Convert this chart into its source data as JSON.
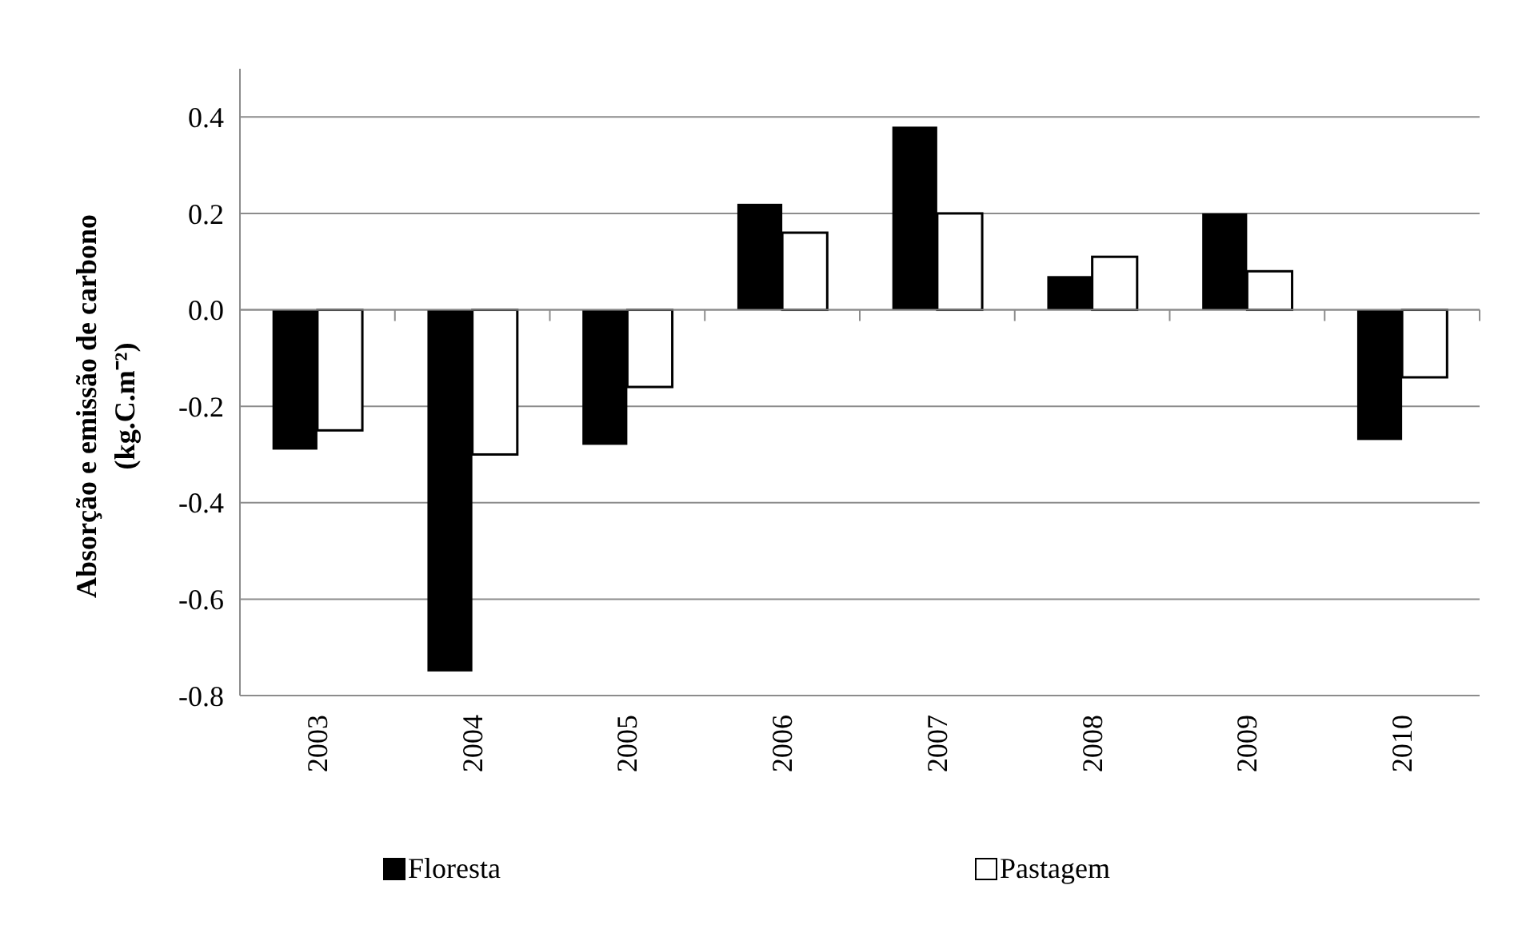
{
  "chart_data": {
    "type": "bar",
    "ylabel": "Absorção e emissão de carbono\n(kg.C.m⁻²)",
    "categories": [
      "2003",
      "2004",
      "2005",
      "2006",
      "2007",
      "2008",
      "2009",
      "2010"
    ],
    "series": [
      {
        "name": "Floresta",
        "color": "#000000",
        "values": [
          -0.29,
          -0.75,
          -0.28,
          0.22,
          0.38,
          0.07,
          0.2,
          -0.27
        ]
      },
      {
        "name": "Pastagem",
        "color": "#ffffff",
        "values": [
          -0.25,
          -0.3,
          -0.16,
          0.16,
          0.2,
          0.11,
          0.08,
          -0.14
        ]
      }
    ],
    "ylim": [
      -0.8,
      0.5
    ],
    "yticks": [
      {
        "value": -0.8,
        "label": "-0.8"
      },
      {
        "value": -0.6,
        "label": "-0.6"
      },
      {
        "value": -0.4,
        "label": "-0.4"
      },
      {
        "value": -0.2,
        "label": "-0.2"
      },
      {
        "value": 0,
        "label": "0.0"
      },
      {
        "value": 0.2,
        "label": "0.2"
      },
      {
        "value": 0.4,
        "label": "0.4"
      }
    ],
    "grid": "y",
    "legend": "bottom"
  }
}
